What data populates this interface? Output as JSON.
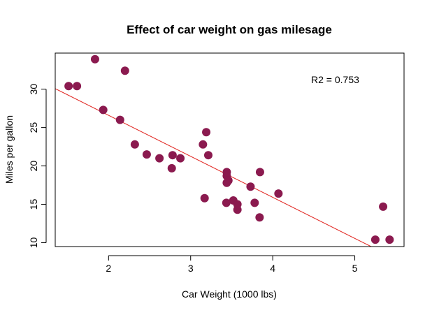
{
  "chart_data": {
    "type": "scatter",
    "title": "Effect of car weight on gas milesage",
    "xlabel": "Car Weight (1000 lbs)",
    "ylabel": "Miles per gallon",
    "xlim": [
      1.35,
      5.6
    ],
    "ylim": [
      9.5,
      34.7
    ],
    "xticks": [
      2,
      3,
      4,
      5
    ],
    "yticks": [
      10,
      15,
      20,
      25,
      30
    ],
    "annotation": "R2 = 0.753",
    "grid": false,
    "point_color": "#8B1A4F",
    "line_color": "#E0201B",
    "regression": {
      "intercept": 37.285,
      "slope": -5.344
    },
    "points": [
      {
        "x": 2.62,
        "y": 21.0
      },
      {
        "x": 2.875,
        "y": 21.0
      },
      {
        "x": 2.32,
        "y": 22.8
      },
      {
        "x": 3.215,
        "y": 21.4
      },
      {
        "x": 3.44,
        "y": 18.7
      },
      {
        "x": 3.46,
        "y": 18.1
      },
      {
        "x": 3.57,
        "y": 14.3
      },
      {
        "x": 3.19,
        "y": 24.4
      },
      {
        "x": 3.15,
        "y": 22.8
      },
      {
        "x": 3.44,
        "y": 19.2
      },
      {
        "x": 3.44,
        "y": 17.8
      },
      {
        "x": 4.07,
        "y": 16.4
      },
      {
        "x": 3.73,
        "y": 17.3
      },
      {
        "x": 3.78,
        "y": 15.2
      },
      {
        "x": 5.25,
        "y": 10.4
      },
      {
        "x": 5.424,
        "y": 10.4
      },
      {
        "x": 5.345,
        "y": 14.7
      },
      {
        "x": 2.2,
        "y": 32.4
      },
      {
        "x": 1.615,
        "y": 30.4
      },
      {
        "x": 1.835,
        "y": 33.9
      },
      {
        "x": 2.465,
        "y": 21.5
      },
      {
        "x": 3.52,
        "y": 15.5
      },
      {
        "x": 3.435,
        "y": 15.2
      },
      {
        "x": 3.84,
        "y": 13.3
      },
      {
        "x": 3.845,
        "y": 19.2
      },
      {
        "x": 1.935,
        "y": 27.3
      },
      {
        "x": 2.14,
        "y": 26.0
      },
      {
        "x": 1.513,
        "y": 30.4
      },
      {
        "x": 3.17,
        "y": 15.8
      },
      {
        "x": 2.77,
        "y": 19.7
      },
      {
        "x": 3.57,
        "y": 15.0
      },
      {
        "x": 2.78,
        "y": 21.4
      }
    ]
  }
}
